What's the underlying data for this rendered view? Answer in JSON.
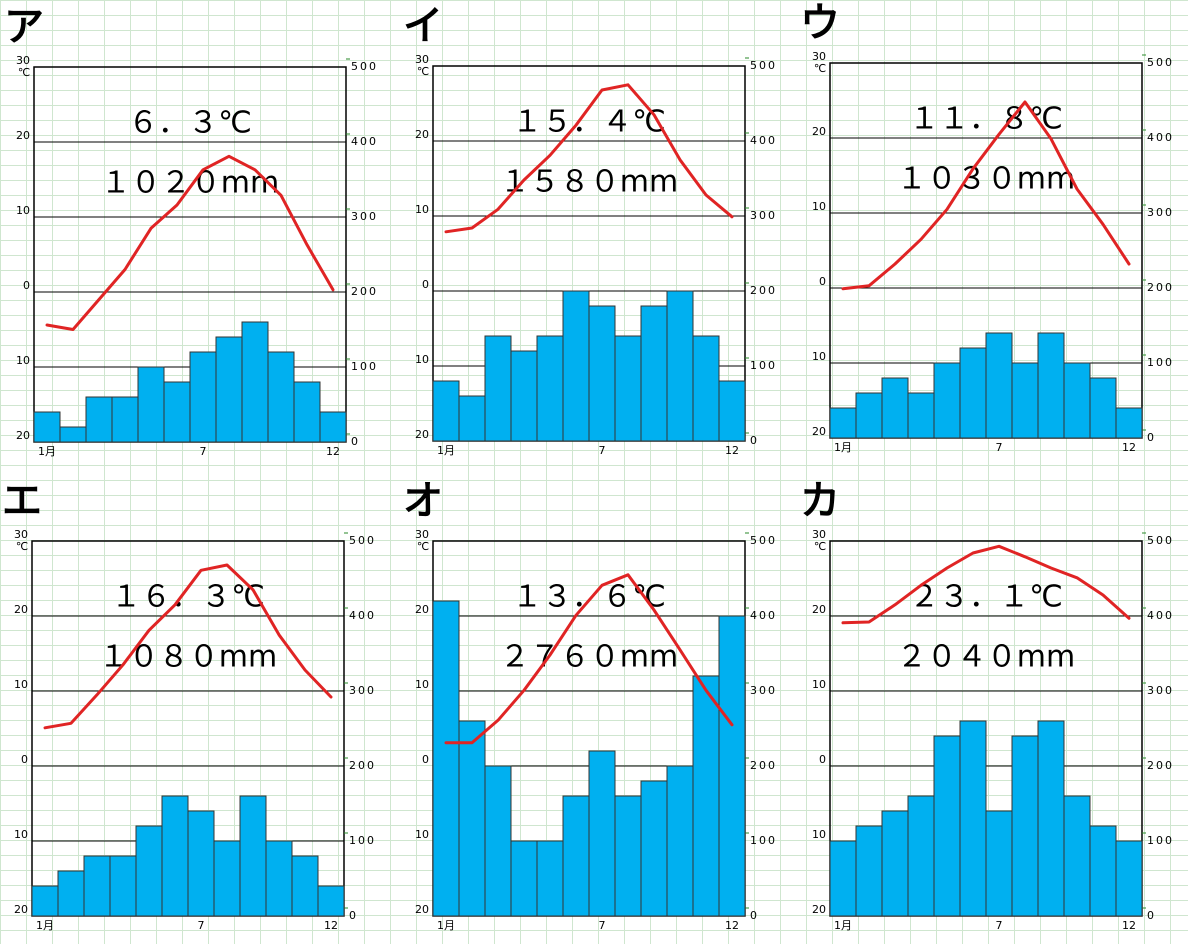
{
  "chart_data": [
    {
      "type": "climate",
      "title": "ア",
      "annotations": [
        "６．３℃",
        "１０２０mm"
      ],
      "ylabel": "℃",
      "categories": [
        "1月",
        null,
        null,
        null,
        null,
        null,
        "7",
        null,
        null,
        null,
        null,
        "12"
      ],
      "ylim": [
        -20,
        30
      ],
      "yticks": [
        {
          "value": -20,
          "label": "20"
        },
        {
          "value": -10,
          "label": "10"
        },
        0,
        10,
        20,
        30
      ],
      "y2lim": [
        0,
        500
      ],
      "y2ticks": [
        0,
        100,
        200,
        300,
        400,
        500
      ],
      "grid": true,
      "series": [
        {
          "type": "bar",
          "axis": "y2",
          "color": "#00b0f0",
          "values": [
            40,
            20,
            60,
            60,
            100,
            80,
            120,
            140,
            160,
            120,
            80,
            40
          ]
        },
        {
          "type": "line",
          "color": "#e02424",
          "values": [
            -4.4,
            -5,
            -1,
            3,
            8.5,
            11.6,
            16.3,
            18.1,
            16.3,
            12.9,
            6.3,
            0.3
          ]
        }
      ]
    },
    {
      "type": "climate",
      "title": "イ",
      "annotations": [
        "１５．４℃",
        "１５８０mm"
      ],
      "ylabel": "℃",
      "categories": [
        "1月",
        null,
        null,
        null,
        null,
        null,
        "7",
        null,
        null,
        null,
        null,
        "12"
      ],
      "ylim": [
        -20,
        30
      ],
      "yticks": [
        {
          "value": -20,
          "label": "20"
        },
        {
          "value": -10,
          "label": "10"
        },
        0,
        10,
        20,
        30
      ],
      "y2lim": [
        0,
        500
      ],
      "y2ticks": [
        0,
        100,
        200,
        300,
        400,
        500
      ],
      "grid": true,
      "series": [
        {
          "type": "bar",
          "axis": "y2",
          "color": "#00b0f0",
          "values": [
            80,
            60,
            140,
            120,
            140,
            200,
            180,
            140,
            180,
            200,
            140,
            80
          ]
        },
        {
          "type": "line",
          "color": "#e02424",
          "values": [
            7.9,
            8.4,
            10.9,
            14.8,
            18.1,
            22.1,
            26.8,
            27.5,
            23.5,
            17.5,
            12.8,
            9.9
          ]
        }
      ]
    },
    {
      "type": "climate",
      "title": "ウ",
      "annotations": [
        "１１．８℃",
        "１０３０mm"
      ],
      "ylabel": "℃",
      "categories": [
        "1月",
        null,
        null,
        null,
        null,
        null,
        "7",
        null,
        null,
        null,
        null,
        "12"
      ],
      "ylim": [
        -20,
        30
      ],
      "yticks": [
        {
          "value": -20,
          "label": "20"
        },
        {
          "value": -10,
          "label": "10"
        },
        0,
        10,
        20,
        30
      ],
      "y2lim": [
        0,
        500
      ],
      "y2ticks": [
        0,
        100,
        200,
        300,
        400,
        500
      ],
      "grid": true,
      "series": [
        {
          "type": "bar",
          "axis": "y2",
          "color": "#00b0f0",
          "values": [
            40,
            60,
            80,
            60,
            100,
            120,
            140,
            100,
            140,
            100,
            80,
            40
          ]
        },
        {
          "type": "line",
          "color": "#e02424",
          "values": [
            -0.1,
            0.3,
            3.2,
            6.5,
            10.5,
            15.9,
            20.5,
            24.8,
            19.9,
            13.2,
            8.5,
            3.2
          ]
        }
      ]
    },
    {
      "type": "climate",
      "title": "エ",
      "annotations": [
        "１６．３℃",
        "１０８０mm"
      ],
      "ylabel": "℃",
      "categories": [
        "1月",
        null,
        null,
        null,
        null,
        null,
        "7",
        null,
        null,
        null,
        null,
        "12"
      ],
      "ylim": [
        -20,
        30
      ],
      "yticks": [
        {
          "value": -20,
          "label": "20"
        },
        {
          "value": -10,
          "label": "10"
        },
        0,
        10,
        20,
        30
      ],
      "y2lim": [
        0,
        500
      ],
      "y2ticks": [
        0,
        100,
        200,
        300,
        400,
        500
      ],
      "grid": true,
      "series": [
        {
          "type": "bar",
          "axis": "y2",
          "color": "#00b0f0",
          "values": [
            40,
            60,
            80,
            80,
            120,
            160,
            140,
            100,
            160,
            100,
            80,
            40
          ]
        },
        {
          "type": "line",
          "color": "#e02424",
          "values": [
            5.1,
            5.7,
            9.5,
            13.5,
            18.1,
            21.5,
            26.1,
            26.8,
            23.5,
            17.5,
            12.8,
            9.2
          ]
        }
      ]
    },
    {
      "type": "climate",
      "title": "オ",
      "annotations": [
        "１３．６℃",
        "２７６０mm"
      ],
      "ylabel": "℃",
      "categories": [
        "1月",
        null,
        null,
        null,
        null,
        null,
        "7",
        null,
        null,
        null,
        null,
        "12"
      ],
      "ylim": [
        -20,
        30
      ],
      "yticks": [
        {
          "value": -20,
          "label": "20"
        },
        {
          "value": -10,
          "label": "10"
        },
        0,
        10,
        20,
        30
      ],
      "y2lim": [
        0,
        500
      ],
      "y2ticks": [
        0,
        100,
        200,
        300,
        400,
        500
      ],
      "grid": true,
      "series": [
        {
          "type": "bar",
          "axis": "y2",
          "color": "#00b0f0",
          "values": [
            420,
            260,
            200,
            100,
            100,
            160,
            220,
            160,
            180,
            200,
            320,
            400
          ]
        },
        {
          "type": "line",
          "color": "#e02424",
          "values": [
            3.1,
            3.1,
            6.1,
            10.1,
            14.8,
            20.1,
            24.1,
            25.5,
            20.8,
            15.5,
            10.1,
            5.5
          ]
        }
      ]
    },
    {
      "type": "climate",
      "title": "カ",
      "annotations": [
        "２３．１℃",
        "２０４０mm"
      ],
      "ylabel": "℃",
      "categories": [
        "1月",
        null,
        null,
        null,
        null,
        null,
        "7",
        null,
        null,
        null,
        null,
        "12"
      ],
      "ylim": [
        -20,
        30
      ],
      "yticks": [
        {
          "value": -20,
          "label": "20"
        },
        {
          "value": -10,
          "label": "10"
        },
        0,
        10,
        20,
        30
      ],
      "y2lim": [
        0,
        500
      ],
      "y2ticks": [
        0,
        100,
        200,
        300,
        400,
        500
      ],
      "grid": true,
      "series": [
        {
          "type": "bar",
          "axis": "y2",
          "color": "#00b0f0",
          "values": [
            100,
            120,
            140,
            160,
            240,
            260,
            140,
            240,
            260,
            160,
            120,
            100
          ]
        },
        {
          "type": "line",
          "color": "#e02424",
          "values": [
            19.1,
            19.2,
            21.5,
            24.1,
            26.4,
            28.4,
            29.3,
            27.9,
            26.4,
            25.1,
            22.8,
            19.7
          ]
        }
      ]
    }
  ]
}
